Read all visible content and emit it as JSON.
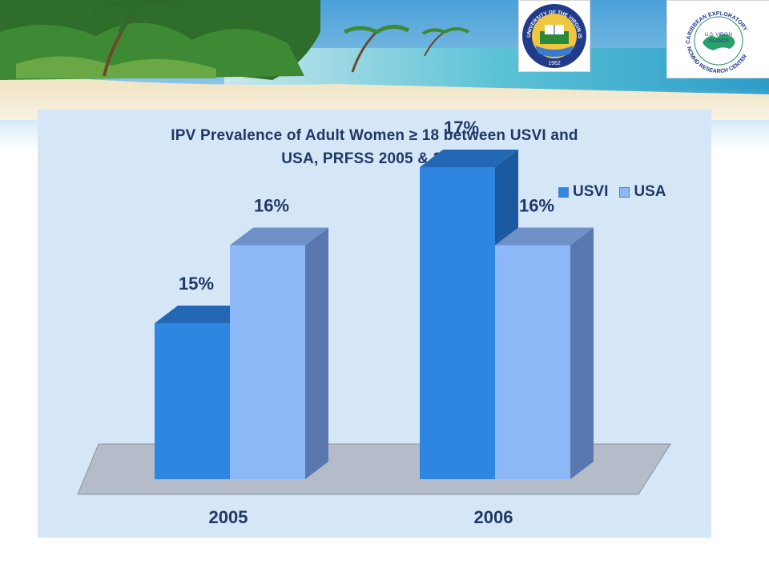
{
  "logos": {
    "uvi": {
      "arc_text": "UNIVERSITY OF THE VIRGIN ISLANDS",
      "year": "1962"
    },
    "ceo": {
      "arc_text": "CARIBBEAN EXPLORATORY",
      "bottom_text": "NCMHD RESEARCH CENTER",
      "center_text": [
        "U.S. VIRGIN",
        "ISLANDS"
      ]
    }
  },
  "chart_data": {
    "type": "bar",
    "title": [
      "IPV Prevalence of Adult Women ≥ 18 between USVI and",
      "USA, PRFSS 2005 & 2006"
    ],
    "categories": [
      "2005",
      "2006"
    ],
    "series": [
      {
        "name": "USVI",
        "values": [
          15,
          17
        ],
        "labels": [
          "15%",
          "17%"
        ],
        "color": "#2e86e0",
        "side_color": "#1b5aa0",
        "top_color": "#2368b4"
      },
      {
        "name": "USA",
        "values": [
          16,
          16
        ],
        "labels": [
          "16%",
          "16%"
        ],
        "color": "#8db8f8",
        "side_color": "#5a78b0",
        "top_color": "#6e92c8"
      }
    ],
    "legend_position": "top-right",
    "grid": false,
    "style": "3d-clustered-column"
  }
}
